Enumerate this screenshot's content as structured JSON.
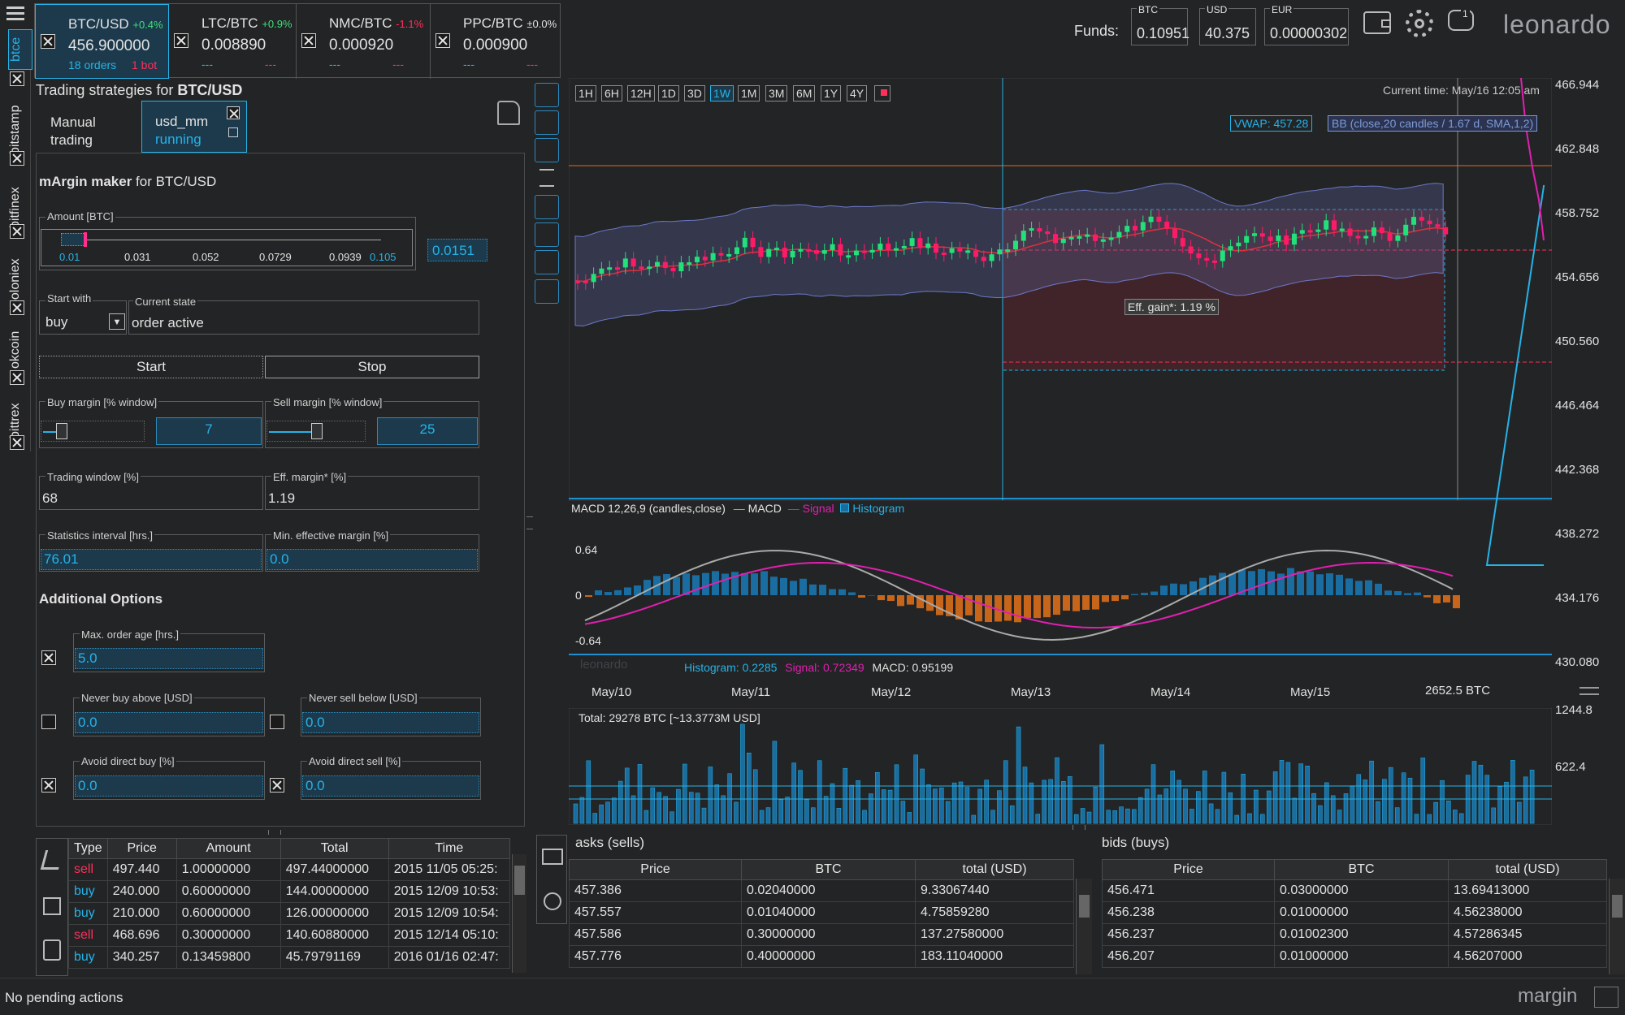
{
  "pairs": [
    {
      "name": "BTC/USD",
      "change": "+0.4%",
      "price": "456.900000",
      "orders": "18 orders",
      "bots": "1 bot"
    },
    {
      "name": "LTC/BTC",
      "change": "+0.9%",
      "price": "0.008890",
      "orders": "---",
      "bots": "---"
    },
    {
      "name": "NMC/BTC",
      "change": "-1.1%",
      "price": "0.000920",
      "orders": "---",
      "bots": "---"
    },
    {
      "name": "PPC/BTC",
      "change": "±0.0%",
      "price": "0.000900",
      "orders": "---",
      "bots": "---"
    }
  ],
  "exchanges": [
    "btce",
    "bitstamp",
    "bitfinex",
    "poloniex",
    "okcoin",
    "bittrex"
  ],
  "funds": {
    "label": "Funds:",
    "btc_label": "BTC",
    "btc": "0.10951",
    "usd_label": "USD",
    "usd": "40.375",
    "eur_label": "EUR",
    "eur": "0.00000302",
    "notif_count": "1"
  },
  "brand": "leonardo",
  "strategies": {
    "title_prefix": "Trading strategies for ",
    "title_pair": "BTC/USD",
    "tab_manual_1": "Manual",
    "tab_manual_2": "trading",
    "tab_bot_1": "usd_mm",
    "tab_bot_2": "running",
    "maker_title_a": "mArgin maker",
    "maker_title_b": " for BTC/USD",
    "amount_label": "Amount [BTC]",
    "amount_ticks": [
      "0.01",
      "0.031",
      "0.052",
      "0.0729",
      "0.0939",
      "0.105"
    ],
    "amount_value": "0.0151",
    "start_with_label": "Start with",
    "start_with_value": "buy",
    "current_state_label": "Current state",
    "current_state_value": "order active",
    "start_btn": "Start",
    "stop_btn": "Stop",
    "buy_margin_label": "Buy margin [% window]",
    "sell_margin_label": "Sell margin [% window]",
    "buy_margin_value": "7",
    "sell_margin_value": "25",
    "trading_window_label": "Trading window [%]",
    "trading_window_value": "68",
    "eff_margin_label": "Eff. margin* [%]",
    "eff_margin_value": "1.19",
    "stats_label": "Statistics interval [hrs.]",
    "stats_value": "76.01",
    "min_eff_label": "Min. effective margin [%]",
    "min_eff_value": "0.0",
    "additional": "Additional Options",
    "max_age_label": "Max. order age [hrs.]",
    "max_age_value": "5.0",
    "never_buy_label": "Never buy above [USD]",
    "never_buy_value": "0.0",
    "never_sell_label": "Never sell below [USD]",
    "never_sell_value": "0.0",
    "avoid_buy_label": "Avoid direct buy [%]",
    "avoid_buy_value": "0.0",
    "avoid_sell_label": "Avoid direct sell [%]",
    "avoid_sell_value": "0.0"
  },
  "chart": {
    "timeframes": [
      "1H",
      "6H",
      "12H",
      "1D",
      "3D",
      "1W",
      "1M",
      "3M",
      "6M",
      "1Y",
      "4Y"
    ],
    "active_timeframe": "1W",
    "current_time": "Current time: May/16 12:05 am",
    "vwap": "VWAP: 457.28",
    "bb": "BB (close,20 candles / 1.67 d, SMA,1,2)",
    "eff_gain": "Eff. gain*: 1.19 %",
    "price_ticks": [
      "466.944",
      "462.848",
      "458.752",
      "454.656",
      "450.560",
      "446.464",
      "442.368",
      "438.272",
      "434.176",
      "430.080"
    ],
    "macd_title": "MACD 12,26,9 (candles,close)",
    "macd_legend_macd": "MACD",
    "macd_legend_signal": "Signal",
    "macd_legend_hist": "Histogram",
    "macd_ticks": [
      "0.64",
      "0",
      "-0.64"
    ],
    "macd_readout_hist": "Histogram: 0.2285",
    "macd_readout_signal": "Signal: 0.72349",
    "macd_readout_macd": "MACD: 0.95199",
    "watermark": "leonardo",
    "dates": [
      "May/10",
      "May/11",
      "May/12",
      "May/13",
      "May/14",
      "May/15"
    ],
    "depth_label": "2652.5 BTC",
    "volume_total": "Total: 29278 BTC [~13.3773M USD]",
    "volume_ticks": [
      "1244.8",
      "622.4"
    ]
  },
  "orders": {
    "headers": [
      "Type",
      "Price",
      "Amount",
      "Total",
      "Time"
    ],
    "rows": [
      [
        "sell",
        "497.440",
        "1.00000000",
        "497.44000000",
        "2015 11/05 05:25:"
      ],
      [
        "buy",
        "240.000",
        "0.60000000",
        "144.00000000",
        "2015 12/09 10:53:"
      ],
      [
        "buy",
        "210.000",
        "0.60000000",
        "126.00000000",
        "2015 12/09 10:54:"
      ],
      [
        "sell",
        "468.696",
        "0.30000000",
        "140.60880000",
        "2015 12/14 05:10:"
      ],
      [
        "buy",
        "340.257",
        "0.13459800",
        "45.79791169",
        "2016 01/16 02:47:"
      ]
    ]
  },
  "asks": {
    "title": "asks",
    "sub": "(sells)",
    "headers": [
      "Price",
      "BTC",
      "total (USD)"
    ],
    "rows": [
      [
        "457.386",
        "0.02040000",
        "9.33067440"
      ],
      [
        "457.557",
        "0.01040000",
        "4.75859280"
      ],
      [
        "457.586",
        "0.30000000",
        "137.27580000"
      ],
      [
        "457.776",
        "0.40000000",
        "183.11040000"
      ]
    ]
  },
  "bids": {
    "title": "bids",
    "sub": "(buys)",
    "headers": [
      "Price",
      "BTC",
      "total (USD)"
    ],
    "rows": [
      [
        "456.471",
        "0.03000000",
        "13.69413000"
      ],
      [
        "456.238",
        "0.01000000",
        "4.56238000"
      ],
      [
        "456.237",
        "0.01002300",
        "4.57286345"
      ],
      [
        "456.207",
        "0.01000000",
        "4.56207000"
      ]
    ]
  },
  "status": "No pending actions",
  "footer_brand": "margin"
}
